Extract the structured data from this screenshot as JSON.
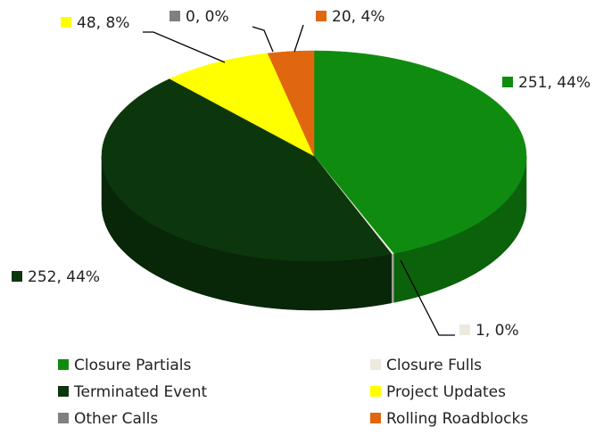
{
  "chart_data": {
    "type": "pie",
    "categories": [
      "Closure Partials",
      "Closure Fulls",
      "Terminated Event",
      "Project Updates",
      "Other Calls",
      "Rolling Roadblocks"
    ],
    "values": [
      251,
      1,
      252,
      48,
      0,
      20
    ],
    "value_labels": [
      "251, 44%",
      "1, 0%",
      "252, 44%",
      "48, 8%",
      "0, 0%",
      "20, 4%"
    ],
    "colors": [
      "#0f8c0f",
      "#ece9df",
      "#0c360c",
      "#ffff00",
      "#808080",
      "#e0660f"
    ],
    "legend": "bottom"
  }
}
